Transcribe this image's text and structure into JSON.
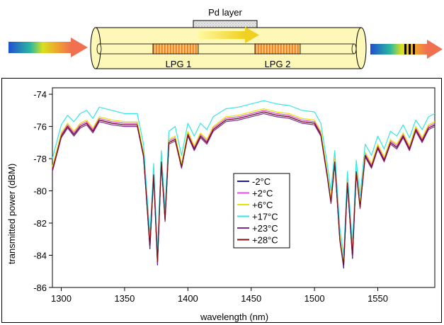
{
  "diagram": {
    "pd_layer_label": "Pd layer",
    "lpg1_label": "LPG 1",
    "lpg2_label": "LPG 2"
  },
  "chart_data": {
    "type": "line",
    "title": "",
    "xlabel": "wavelength (nm)",
    "ylabel": "transmitted power (dBM)",
    "xlim": [
      1293,
      1595
    ],
    "ylim": [
      -86,
      -73.6
    ],
    "xticks": [
      1300,
      1350,
      1400,
      1450,
      1500,
      1550
    ],
    "yticks": [
      -74,
      -76,
      -78,
      -80,
      -82,
      -84,
      -86
    ],
    "grid": false,
    "legend_position": "center",
    "x": [
      1293,
      1300,
      1305,
      1310,
      1315,
      1320,
      1325,
      1330,
      1340,
      1350,
      1360,
      1365,
      1370,
      1373,
      1376,
      1379,
      1382,
      1385,
      1390,
      1395,
      1400,
      1405,
      1410,
      1415,
      1420,
      1430,
      1440,
      1450,
      1460,
      1470,
      1480,
      1490,
      1500,
      1505,
      1510,
      1513,
      1516,
      1520,
      1523,
      1526,
      1530,
      1533,
      1536,
      1540,
      1545,
      1550,
      1555,
      1560,
      1565,
      1570,
      1575,
      1580,
      1585,
      1590,
      1595
    ],
    "series": [
      {
        "name": "-2°C",
        "color": "#1a1aa6",
        "values": [
          -78.7,
          -76.6,
          -76.0,
          -76.5,
          -76.0,
          -75.8,
          -76.3,
          -75.6,
          -75.8,
          -75.9,
          -75.9,
          -77.8,
          -83.6,
          -79.0,
          -84.6,
          -78.2,
          -81.8,
          -77.0,
          -76.8,
          -78.5,
          -76.5,
          -77.4,
          -76.6,
          -77.0,
          -76.2,
          -75.6,
          -75.5,
          -75.3,
          -75.1,
          -75.3,
          -75.4,
          -75.7,
          -75.8,
          -76.5,
          -79.0,
          -80.7,
          -78.2,
          -83.0,
          -84.8,
          -79.5,
          -84.2,
          -78.8,
          -81.0,
          -77.8,
          -78.5,
          -77.3,
          -78.1,
          -77.0,
          -77.3,
          -76.6,
          -77.4,
          -76.2,
          -76.9,
          -76.1,
          -75.9
        ]
      },
      {
        "name": "+2°C",
        "color": "#e34be0",
        "values": [
          -78.6,
          -76.5,
          -75.9,
          -76.4,
          -75.9,
          -75.7,
          -76.2,
          -75.5,
          -75.7,
          -75.8,
          -75.8,
          -77.7,
          -83.4,
          -78.9,
          -84.4,
          -78.1,
          -81.7,
          -76.9,
          -76.7,
          -78.4,
          -76.4,
          -77.3,
          -76.5,
          -76.9,
          -76.1,
          -75.5,
          -75.4,
          -75.2,
          -75.0,
          -75.2,
          -75.3,
          -75.6,
          -75.7,
          -76.4,
          -78.9,
          -80.6,
          -78.1,
          -82.9,
          -84.6,
          -79.4,
          -84.0,
          -78.7,
          -80.9,
          -77.7,
          -78.4,
          -77.2,
          -78.0,
          -76.9,
          -77.2,
          -76.5,
          -77.3,
          -76.1,
          -76.8,
          -76.0,
          -75.8
        ]
      },
      {
        "name": "+6°C",
        "color": "#e8e200",
        "values": [
          -78.5,
          -76.4,
          -75.8,
          -76.3,
          -75.8,
          -75.6,
          -76.1,
          -75.4,
          -75.6,
          -75.7,
          -75.7,
          -77.6,
          -83.3,
          -78.8,
          -84.3,
          -78.0,
          -81.6,
          -76.8,
          -76.6,
          -78.3,
          -76.3,
          -77.2,
          -76.4,
          -76.8,
          -76.0,
          -75.4,
          -75.3,
          -75.1,
          -74.9,
          -75.1,
          -75.2,
          -75.5,
          -75.6,
          -76.3,
          -78.8,
          -80.5,
          -78.0,
          -82.8,
          -84.5,
          -79.3,
          -83.9,
          -78.6,
          -80.8,
          -77.6,
          -78.3,
          -77.1,
          -77.9,
          -76.8,
          -77.1,
          -76.4,
          -77.2,
          -76.0,
          -76.7,
          -75.9,
          -75.7
        ]
      },
      {
        "name": "+17°C",
        "color": "#33e6e6",
        "values": [
          -78.0,
          -75.9,
          -75.3,
          -75.7,
          -75.2,
          -75.0,
          -75.5,
          -74.8,
          -75.0,
          -75.2,
          -75.2,
          -77.1,
          -82.8,
          -78.3,
          -83.8,
          -77.5,
          -81.1,
          -76.3,
          -76.0,
          -77.8,
          -75.8,
          -76.6,
          -75.8,
          -76.2,
          -75.4,
          -74.9,
          -74.8,
          -74.6,
          -74.4,
          -74.6,
          -74.7,
          -75.0,
          -75.1,
          -75.8,
          -78.3,
          -80.0,
          -77.5,
          -82.3,
          -84.0,
          -78.8,
          -83.4,
          -78.1,
          -80.3,
          -77.1,
          -77.8,
          -76.6,
          -77.4,
          -76.3,
          -76.6,
          -75.9,
          -76.7,
          -75.6,
          -76.2,
          -75.4,
          -75.2
        ]
      },
      {
        "name": "+23°C",
        "color": "#7a2a9a",
        "values": [
          -78.8,
          -76.7,
          -76.1,
          -76.6,
          -76.1,
          -75.9,
          -76.4,
          -75.7,
          -75.9,
          -76.0,
          -76.0,
          -77.9,
          -83.5,
          -79.1,
          -84.5,
          -78.3,
          -81.9,
          -77.1,
          -76.9,
          -78.6,
          -76.6,
          -77.5,
          -76.7,
          -77.1,
          -76.3,
          -75.7,
          -75.6,
          -75.4,
          -75.2,
          -75.4,
          -75.5,
          -75.8,
          -75.9,
          -76.6,
          -79.1,
          -80.8,
          -78.3,
          -83.1,
          -84.7,
          -79.6,
          -84.1,
          -78.9,
          -81.1,
          -77.9,
          -78.6,
          -77.4,
          -78.2,
          -77.1,
          -77.4,
          -76.7,
          -77.5,
          -76.3,
          -77.0,
          -76.2,
          -76.0
        ]
      },
      {
        "name": "+28°C",
        "color": "#7a1010",
        "values": [
          -78.7,
          -76.6,
          -76.0,
          -76.5,
          -76.0,
          -75.8,
          -76.3,
          -75.6,
          -75.8,
          -75.9,
          -75.9,
          -77.8,
          -83.4,
          -79.0,
          -84.4,
          -78.2,
          -81.8,
          -77.0,
          -76.8,
          -78.5,
          -76.5,
          -77.4,
          -76.6,
          -77.0,
          -76.2,
          -75.6,
          -75.5,
          -75.3,
          -75.1,
          -75.3,
          -75.4,
          -75.7,
          -75.8,
          -76.5,
          -79.0,
          -80.7,
          -78.2,
          -83.0,
          -84.6,
          -79.5,
          -84.0,
          -78.8,
          -81.0,
          -77.8,
          -78.5,
          -77.3,
          -78.1,
          -77.0,
          -77.3,
          -76.6,
          -77.4,
          -76.2,
          -76.9,
          -76.1,
          -75.9
        ]
      }
    ]
  }
}
